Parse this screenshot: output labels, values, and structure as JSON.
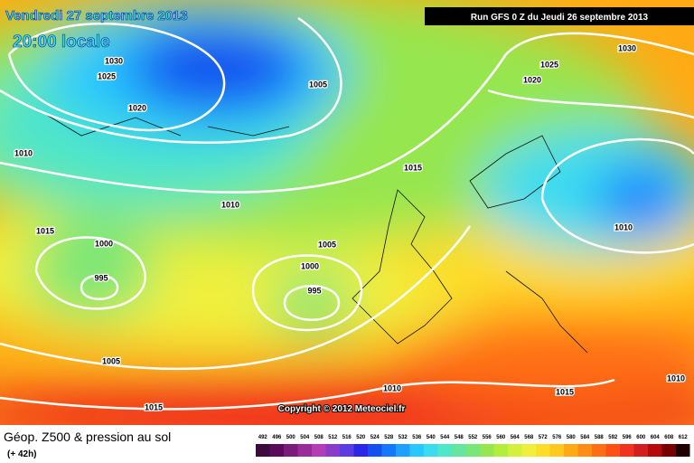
{
  "header": {
    "date": "Vendredi 27 septembre 2013",
    "time": "20:00 locale",
    "run": "Run GFS 0 Z du Jeudi 26 septembre 2013"
  },
  "isobar_labels": [
    "1030",
    "1025",
    "1020",
    "1010",
    "1005",
    "1015",
    "1010",
    "1015",
    "1000",
    "995",
    "1005",
    "1000",
    "995",
    "1005",
    "1015",
    "1010",
    "1025",
    "1030",
    "1020",
    "1010",
    "1015",
    "1010"
  ],
  "copyright": "Copyright © 2012 Meteociel.fr",
  "footer": {
    "title": "Géop. Z500 & pression au sol",
    "lead": "(+ 42h)"
  },
  "scale": {
    "labels": [
      492,
      496,
      500,
      504,
      508,
      512,
      516,
      520,
      524,
      528,
      532,
      536,
      540,
      544,
      548,
      552,
      556,
      560,
      564,
      568,
      572,
      576,
      580,
      584,
      588,
      592,
      596,
      600,
      604,
      608,
      612
    ],
    "colors": [
      "#3c0a3c",
      "#5a0a5a",
      "#7a1a7a",
      "#9a2a9a",
      "#b43cb4",
      "#8a3cc8",
      "#5a3ce0",
      "#2828e6",
      "#1450f0",
      "#1478ff",
      "#1ea0ff",
      "#28c8ff",
      "#3cdcf0",
      "#50e6c8",
      "#64e6a0",
      "#78e678",
      "#96e650",
      "#b4ee3c",
      "#d2f03c",
      "#f0f03c",
      "#ffdc28",
      "#ffc81e",
      "#ffaa14",
      "#ff8c14",
      "#ff6e14",
      "#ff5014",
      "#f0321e",
      "#d21e1e",
      "#b40a0a",
      "#780000",
      "#1e0000"
    ]
  }
}
